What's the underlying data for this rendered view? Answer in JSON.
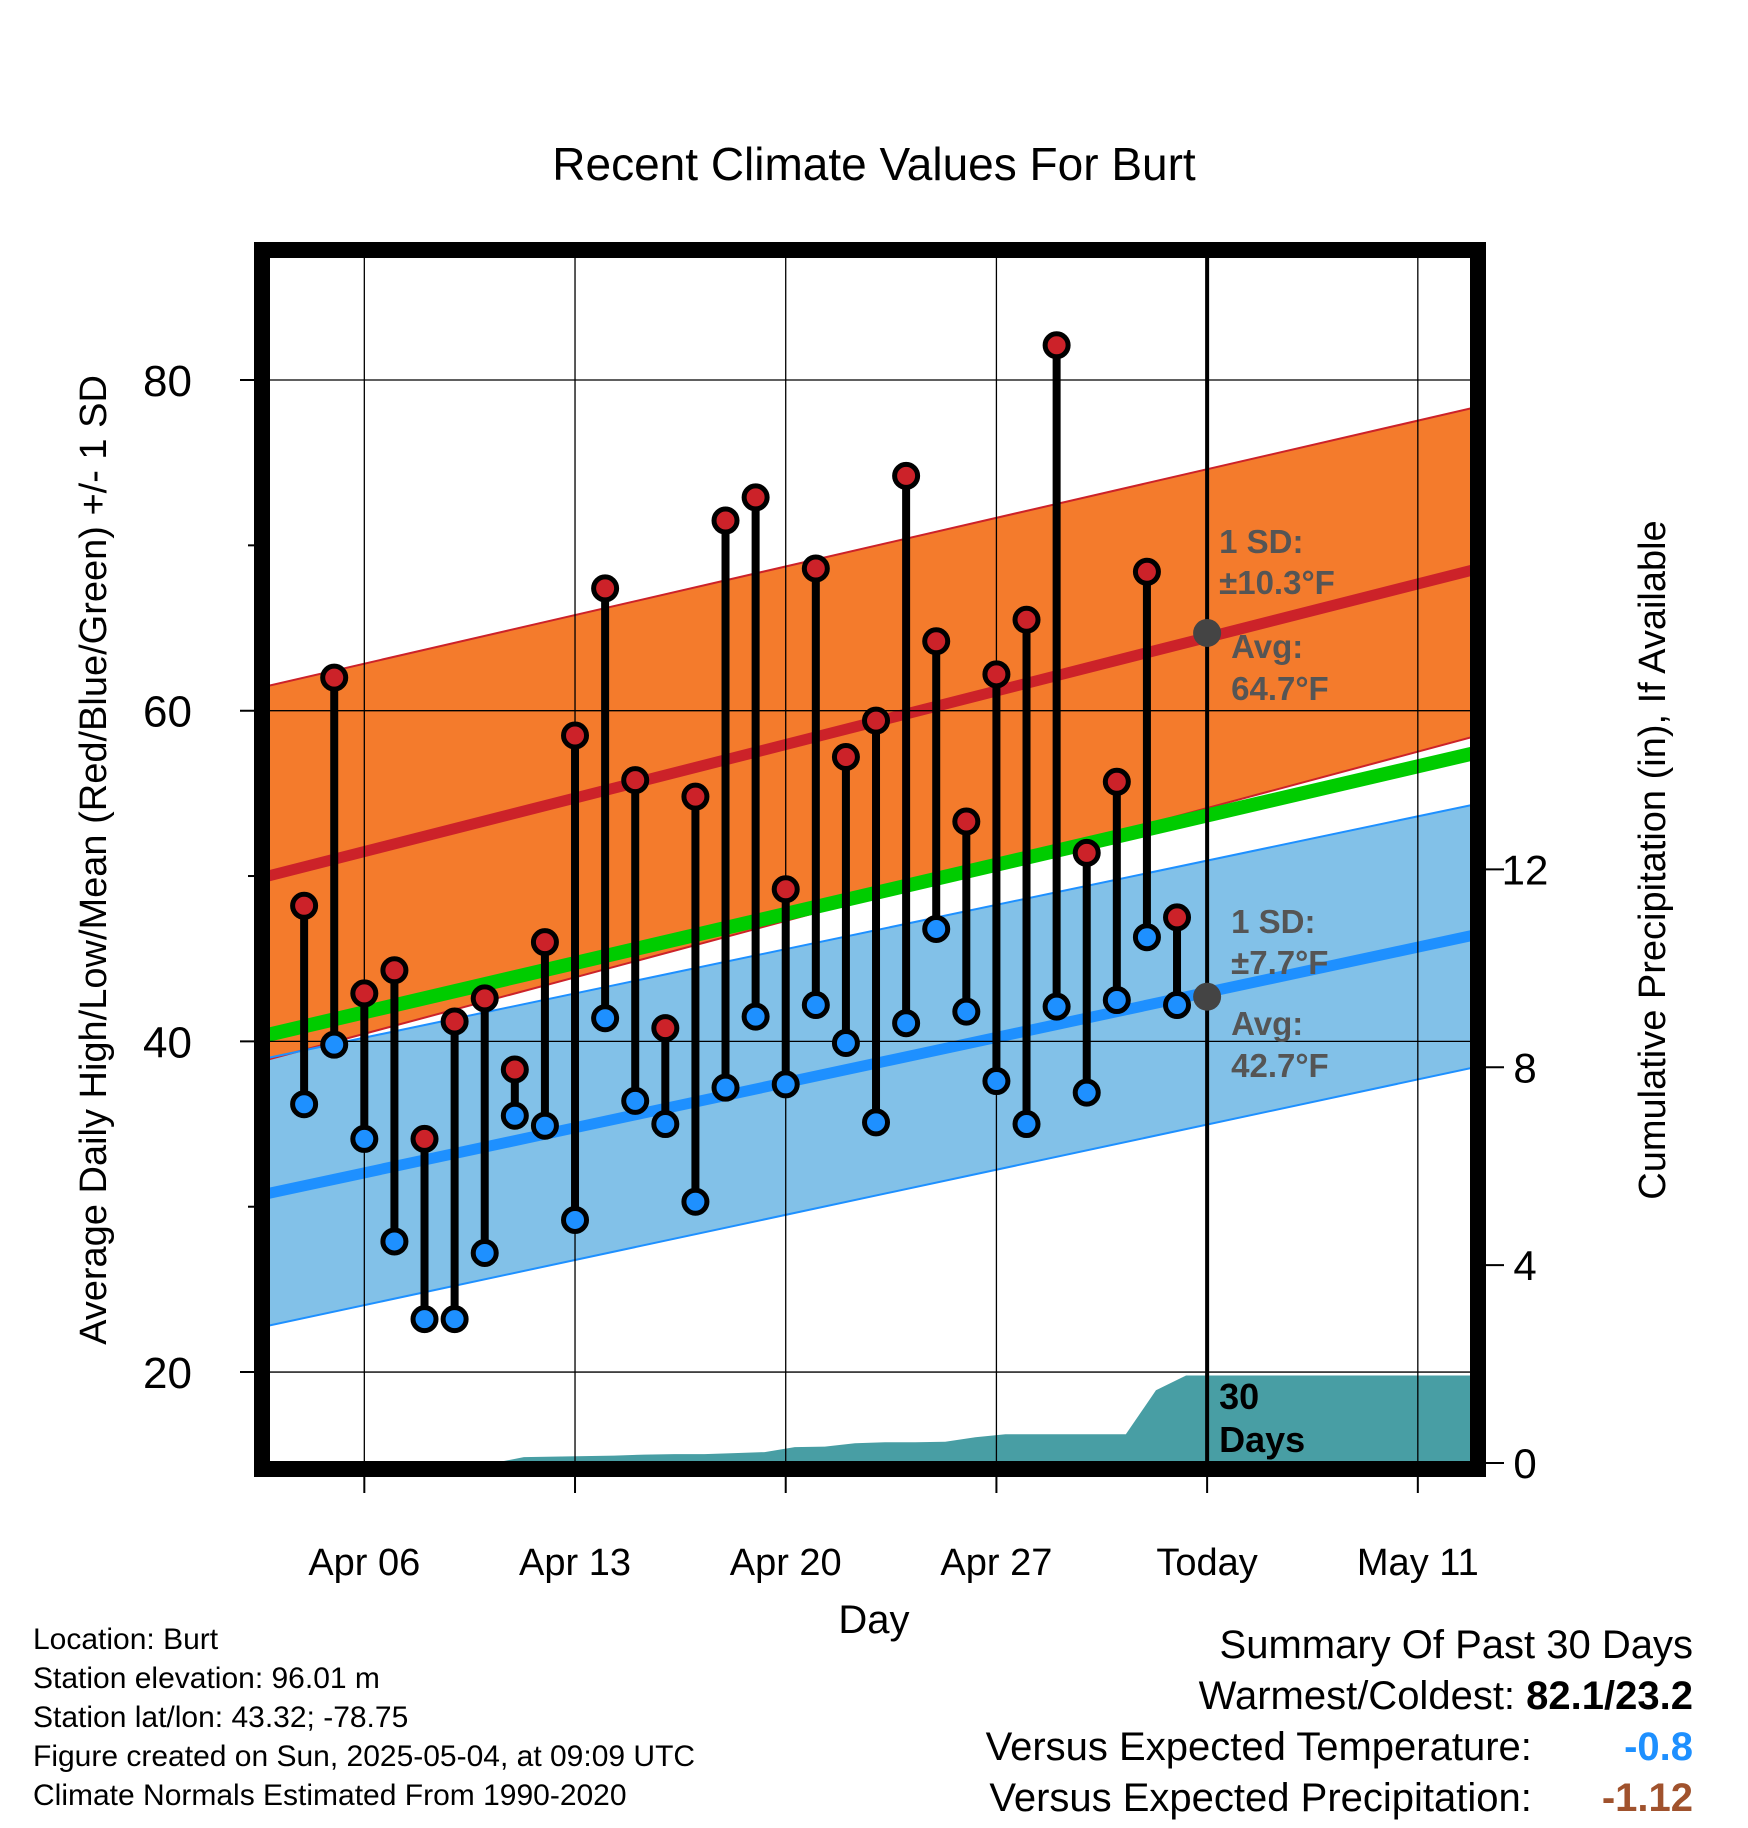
{
  "chart_data": {
    "type": "line",
    "title": "Recent Climate Values For Burt",
    "xlabel": "Day",
    "ylabel_left": "Average Daily High/Low/Mean (Red/Blue/Green) +/- 1 SD",
    "ylabel_right": "Cumulative Precipitation (in), If Available",
    "x_ticks": [
      {
        "day": 5,
        "label": "Apr 06"
      },
      {
        "day": 12,
        "label": "Apr 13"
      },
      {
        "day": 19,
        "label": "Apr 20"
      },
      {
        "day": 26,
        "label": "Apr 27"
      },
      {
        "day": 33,
        "label": "Today"
      },
      {
        "day": 40,
        "label": "May 11"
      }
    ],
    "xlim": [
      1.8,
      41.8
    ],
    "ylim": [
      14.5,
      87.5
    ],
    "y_ticks_left": [
      20,
      40,
      60,
      80
    ],
    "y_minor_left": [
      30,
      50,
      70
    ],
    "y2lim": [
      0,
      24.4
    ],
    "y_ticks_right": [
      0,
      4,
      8,
      12
    ],
    "grid": true,
    "today_day": 33,
    "colors": {
      "high_band": "#f47b2c",
      "high_line": "#cc2229",
      "low_band": "#82c1e8",
      "low_line": "#1e90ff",
      "mean_line": "#00cc00",
      "precip": "#489ea4",
      "avg_marker": "#444444",
      "annotation": "#555555",
      "dot_high": "#cc2229",
      "dot_low": "#1e90ff"
    },
    "normals": {
      "high_avg": [
        50.0,
        68.5
      ],
      "high_sd_upper": [
        61.5,
        78.3
      ],
      "high_sd_lower": [
        38.9,
        58.4
      ],
      "low_avg": [
        30.8,
        46.4
      ],
      "low_sd_upper": [
        39.0,
        54.3
      ],
      "low_sd_lower": [
        22.8,
        38.4
      ],
      "mean_avg": [
        40.4,
        57.4
      ]
    },
    "series": [
      {
        "name": "High",
        "days": [
          3,
          4,
          5,
          6,
          7,
          8,
          9,
          10,
          11,
          12,
          13,
          14,
          15,
          16,
          17,
          18,
          19,
          20,
          21,
          22,
          23,
          24,
          25,
          26,
          27,
          28,
          29,
          30,
          31,
          32
        ],
        "values": [
          48.2,
          62.0,
          42.9,
          44.3,
          34.1,
          41.2,
          42.6,
          38.3,
          46.0,
          58.5,
          67.4,
          55.8,
          40.8,
          54.8,
          71.5,
          72.9,
          49.2,
          68.6,
          57.2,
          59.4,
          74.2,
          64.2,
          53.3,
          62.2,
          65.5,
          82.1,
          51.4,
          55.7,
          68.4,
          47.5
        ]
      },
      {
        "name": "Low",
        "days": [
          3,
          4,
          5,
          6,
          7,
          8,
          9,
          10,
          11,
          12,
          13,
          14,
          15,
          16,
          17,
          18,
          19,
          20,
          21,
          22,
          23,
          24,
          25,
          26,
          27,
          28,
          29,
          30,
          31,
          32
        ],
        "values": [
          36.2,
          39.8,
          34.1,
          27.9,
          23.2,
          23.2,
          27.2,
          35.5,
          34.9,
          29.2,
          41.4,
          36.4,
          35.0,
          30.3,
          37.2,
          41.5,
          37.4,
          42.2,
          39.9,
          35.1,
          41.1,
          46.8,
          41.8,
          37.6,
          35.0,
          42.1,
          36.9,
          42.5,
          46.3,
          42.2
        ]
      }
    ],
    "precip": {
      "days": [
        1.8,
        9.3,
        10.3,
        11.3,
        12.3,
        13.3,
        14.3,
        15.3,
        16.3,
        17.3,
        18.3,
        19.3,
        20.3,
        21.3,
        22.3,
        23.3,
        24.3,
        25.3,
        26.3,
        27.3,
        28.3,
        29.3,
        30.3,
        31.3,
        32.3,
        41.8
      ],
      "values": [
        0.0,
        0.0,
        0.12,
        0.13,
        0.14,
        0.15,
        0.17,
        0.18,
        0.18,
        0.2,
        0.22,
        0.32,
        0.33,
        0.4,
        0.42,
        0.42,
        0.43,
        0.52,
        0.58,
        0.58,
        0.58,
        0.58,
        0.58,
        1.47,
        1.77,
        1.77
      ]
    },
    "annotations": {
      "high_sd_label": "1 SD:",
      "high_sd_value": "±10.3°F",
      "high_avg_label": "Avg:",
      "high_avg_value": "64.7°F",
      "high_avg_marker": 64.7,
      "low_sd_label": "1 SD:",
      "low_sd_value": "±7.7°F",
      "low_avg_label": "Avg:",
      "low_avg_value": "42.7°F",
      "low_avg_marker": 42.7,
      "precip_label_1": "30",
      "precip_label_2": "Days"
    }
  },
  "info": {
    "location": "Location: Burt",
    "elevation": "Station elevation: 96.01 m",
    "latlon": "Station lat/lon: 43.32; -78.75",
    "created": "Figure created on Sun, 2025-05-04, at 09:09 UTC",
    "normals": "Climate Normals Estimated From 1990-2020"
  },
  "summary": {
    "title": "Summary Of Past 30 Days",
    "warmest_label": "Warmest/Coldest:",
    "warmest_value": "82.1/23.2",
    "temp_label": "Versus Expected Temperature:",
    "temp_value": "-0.8",
    "temp_color": "#1e90ff",
    "precip_label": "Versus Expected Precipitation:",
    "precip_value": "-1.12",
    "precip_color": "#a0522d"
  }
}
